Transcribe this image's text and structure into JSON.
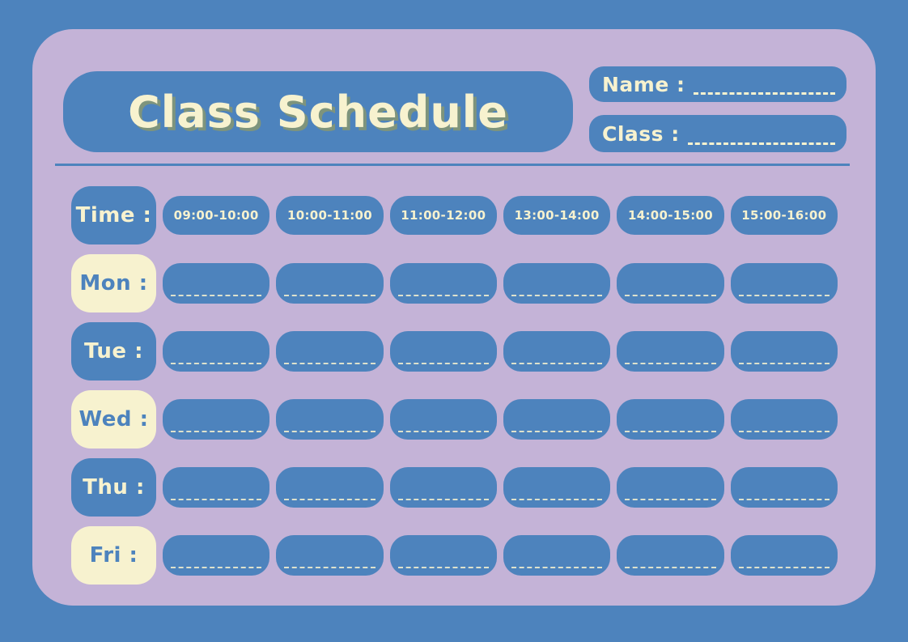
{
  "colors": {
    "background_blue": "#4d83bd",
    "card_lavender": "#c4b3d7",
    "pill_blue": "#4d83bd",
    "cream": "#f7f2cf",
    "title_shadow_green": "#7e947c"
  },
  "header": {
    "title": "Class Schedule",
    "name_label": "Name :",
    "name_value": "",
    "class_label": "Class :",
    "class_value": ""
  },
  "schedule": {
    "time_label": "Time :",
    "time_slots": [
      "09:00-10:00",
      "10:00-11:00",
      "11:00-12:00",
      "13:00-14:00",
      "14:00-15:00",
      "15:00-16:00"
    ],
    "days": [
      {
        "label": "Mon :",
        "style": "cream"
      },
      {
        "label": "Tue :",
        "style": "blue"
      },
      {
        "label": "Wed :",
        "style": "cream"
      },
      {
        "label": "Thu :",
        "style": "blue"
      },
      {
        "label": "Fri :",
        "style": "cream"
      }
    ],
    "cell_value": ""
  }
}
